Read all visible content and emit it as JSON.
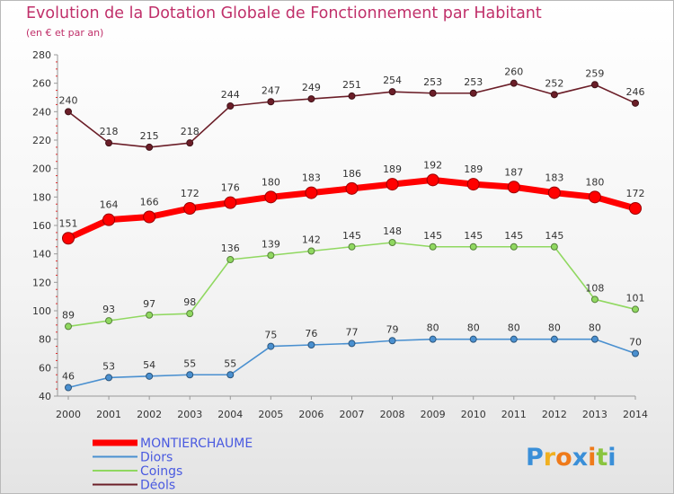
{
  "title": "Evolution de la Dotation Globale de Fonctionnement par Habitant",
  "subtitle": "(en € et par an)",
  "logo": {
    "letters": [
      "P",
      "r",
      "o",
      "x",
      "i",
      "t",
      "i"
    ],
    "colors": [
      "#3a8fd8",
      "#f0b020",
      "#ef7a1a",
      "#3a8fd8",
      "#ef7a1a",
      "#8ac43f",
      "#3a8fd8"
    ]
  },
  "chart_data": {
    "type": "line",
    "title": "Evolution de la Dotation Globale de Fonctionnement par Habitant",
    "subtitle": "(en € et par an)",
    "categories": [
      "2000",
      "2001",
      "2002",
      "2003",
      "2004",
      "2005",
      "2006",
      "2007",
      "2008",
      "2009",
      "2010",
      "2011",
      "2012",
      "2013",
      "2014"
    ],
    "ylim": [
      40,
      280
    ],
    "yticks": [
      40,
      60,
      80,
      100,
      120,
      140,
      160,
      180,
      200,
      220,
      240,
      260,
      280
    ],
    "grid": false,
    "legend_position": "bottom-left",
    "series": [
      {
        "name": "Déols",
        "color": "#6b1e28",
        "values": [
          240,
          218,
          215,
          218,
          244,
          247,
          249,
          251,
          254,
          253,
          253,
          260,
          252,
          259,
          246
        ]
      },
      {
        "name": "MONTIERCHAUME",
        "color": "#ff0000",
        "values": [
          151,
          164,
          166,
          172,
          176,
          180,
          183,
          186,
          189,
          192,
          189,
          187,
          183,
          180,
          172
        ]
      },
      {
        "name": "Coings",
        "color": "#90d860",
        "values": [
          89,
          93,
          97,
          98,
          136,
          139,
          142,
          145,
          148,
          145,
          145,
          145,
          145,
          108,
          101
        ]
      },
      {
        "name": "Diors",
        "color": "#4a90d0",
        "values": [
          46,
          53,
          54,
          55,
          55,
          75,
          76,
          77,
          79,
          80,
          80,
          80,
          80,
          80,
          70
        ]
      }
    ],
    "legend": [
      {
        "name": "MONTIERCHAUME",
        "color": "#ff0000",
        "text_color": "#4a5ae0"
      },
      {
        "name": "Diors",
        "color": "#4a90d0",
        "text_color": "#4a5ae0"
      },
      {
        "name": "Coings",
        "color": "#90d860",
        "text_color": "#4a5ae0"
      },
      {
        "name": "Déols",
        "color": "#6b1e28",
        "text_color": "#4a5ae0"
      }
    ]
  }
}
